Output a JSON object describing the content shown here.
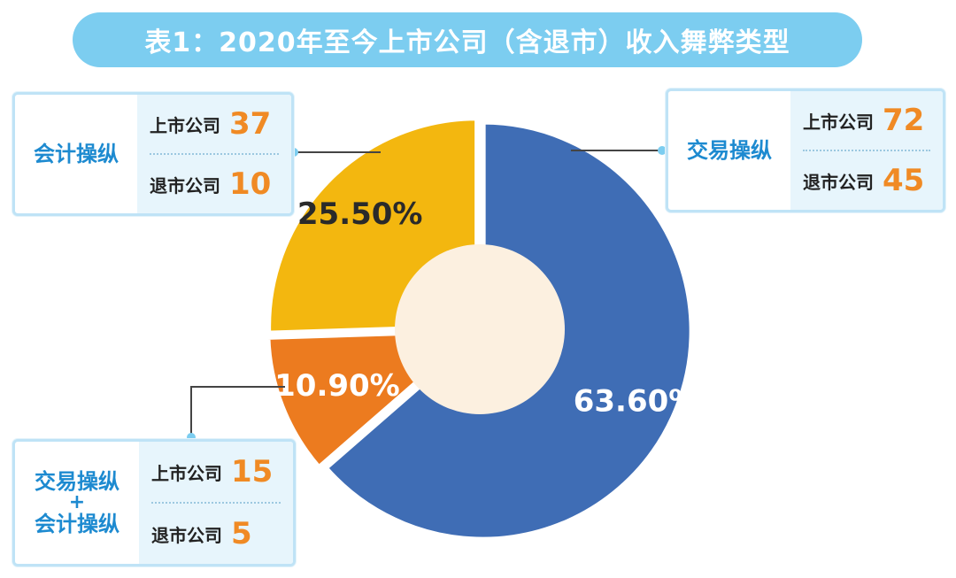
{
  "title": "表1：2020年至今上市公司（含退市）收入舞弊类型",
  "chart_data": {
    "type": "pie",
    "donut": true,
    "slices": [
      {
        "label": "交易操纵",
        "value": 63.6,
        "display": "63.60%",
        "color": "#3f6db5"
      },
      {
        "label": "交易操纵+会计操纵",
        "value": 10.9,
        "display": "10.90%",
        "color": "#ec7b1f"
      },
      {
        "label": "会计操纵",
        "value": 25.5,
        "display": "25.50%",
        "color": "#f3b70f"
      }
    ],
    "center_color": "#fcf0e0"
  },
  "callouts": {
    "accounting": {
      "name": "会计操纵",
      "listed_label": "上市公司",
      "listed_value": "37",
      "delisted_label": "退市公司",
      "delisted_value": "10"
    },
    "transaction": {
      "name": "交易操纵",
      "listed_label": "上市公司",
      "listed_value": "72",
      "delisted_label": "退市公司",
      "delisted_value": "45"
    },
    "both": {
      "name_line1": "交易操纵",
      "plus": "+",
      "name_line2": "会计操纵",
      "listed_label": "上市公司",
      "listed_value": "15",
      "delisted_label": "退市公司",
      "delisted_value": "5"
    }
  }
}
